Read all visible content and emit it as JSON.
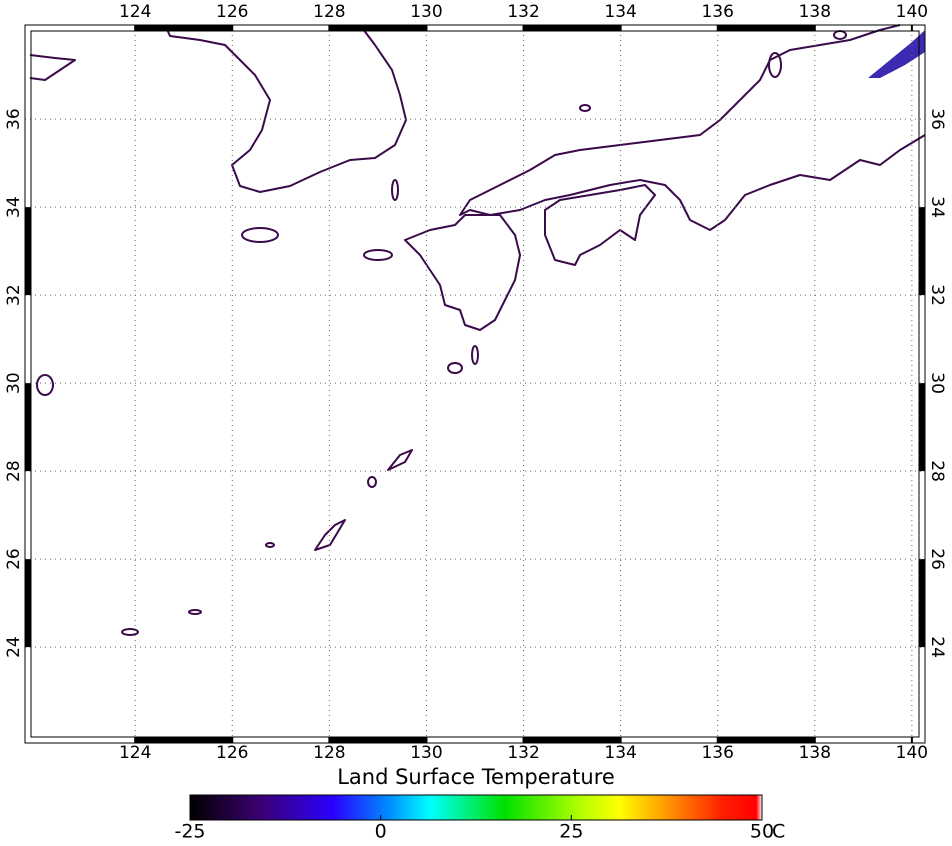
{
  "map": {
    "lonlim": [
      121.73,
      140.27
    ],
    "latlim": [
      21.82,
      38.14
    ],
    "lon_ticks": [
      124,
      126,
      128,
      130,
      132,
      134,
      136,
      138,
      140
    ],
    "lat_ticks": [
      24,
      26,
      28,
      30,
      32,
      34,
      36
    ]
  },
  "colorbar": {
    "title": "Land Surface Temperature",
    "lim": [
      -25,
      50
    ],
    "ticks": [
      -25,
      0,
      25,
      50
    ],
    "unit": "C"
  }
}
